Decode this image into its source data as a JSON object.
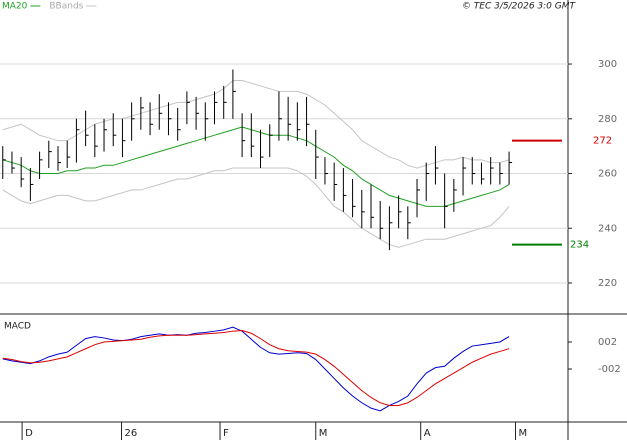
{
  "chart_data": [
    {
      "type": "ohlc",
      "source": "© TEC 3/5/2026 3:0 GMT",
      "xlim": [
        -0.3,
        61.4
      ],
      "ylim": [
        209.4,
        323.4
      ],
      "yticks": [
        220,
        240,
        260,
        280,
        300
      ],
      "grid": true,
      "bar_color": "#000000",
      "high": [
        270,
        268,
        266,
        262,
        268,
        272,
        270,
        272,
        280,
        283,
        278,
        280,
        282,
        280,
        286,
        288,
        286,
        289,
        286,
        284,
        290,
        288,
        286,
        290,
        292,
        298,
        282,
        282,
        276,
        278,
        290,
        288,
        286,
        288,
        276,
        266,
        264,
        262,
        258,
        254,
        256,
        250,
        248,
        252,
        248,
        258,
        264,
        270,
        260,
        258,
        266,
        266,
        264,
        266,
        264,
        268
      ],
      "low": [
        258,
        260,
        255,
        250,
        258,
        262,
        261,
        262,
        264,
        270,
        266,
        268,
        270,
        266,
        272,
        276,
        274,
        276,
        274,
        272,
        278,
        276,
        272,
        278,
        280,
        280,
        266,
        266,
        262,
        266,
        272,
        272,
        272,
        270,
        258,
        256,
        250,
        246,
        244,
        240,
        240,
        236,
        232,
        240,
        236,
        244,
        250,
        256,
        240,
        246,
        252,
        256,
        256,
        256,
        256,
        256
      ],
      "close": [
        265,
        262,
        258,
        256,
        265,
        268,
        264,
        266,
        276,
        274,
        270,
        276,
        274,
        272,
        280,
        284,
        278,
        282,
        280,
        276,
        286,
        282,
        280,
        286,
        286,
        290,
        272,
        270,
        266,
        274,
        280,
        278,
        276,
        278,
        266,
        260,
        256,
        252,
        248,
        246,
        244,
        240,
        242,
        246,
        242,
        254,
        260,
        262,
        248,
        254,
        262,
        260,
        258,
        262,
        260,
        264
      ],
      "series": [
        {
          "name": "MA20",
          "color": "#22a022",
          "values": [
            265,
            264,
            263,
            261,
            260,
            260,
            260,
            261,
            261,
            262,
            262,
            263,
            263,
            264,
            265,
            266,
            267,
            268,
            269,
            270,
            271,
            272,
            273,
            274,
            275,
            276,
            277,
            276,
            275,
            274,
            274,
            274,
            273,
            272,
            270,
            268,
            266,
            263,
            261,
            258,
            256,
            254,
            252,
            251,
            250,
            249,
            248,
            248,
            248,
            249,
            250,
            251,
            252,
            253,
            254,
            256
          ]
        },
        {
          "name": "BBands",
          "color": "#c4c4c4",
          "upper": [
            276,
            277,
            278,
            276,
            274,
            273,
            272,
            272,
            274,
            276,
            278,
            279,
            280,
            280,
            281,
            282,
            283,
            284,
            285,
            286,
            286,
            287,
            288,
            289,
            291,
            294,
            294,
            293,
            292,
            291,
            290,
            290,
            290,
            289,
            287,
            285,
            282,
            279,
            276,
            272,
            270,
            268,
            266,
            265,
            263,
            262,
            263,
            264,
            265,
            265,
            266,
            265,
            265,
            264,
            264,
            265
          ],
          "lower": [
            254,
            252,
            250,
            249,
            250,
            251,
            252,
            252,
            251,
            250,
            250,
            251,
            252,
            253,
            254,
            254,
            255,
            256,
            257,
            258,
            258,
            259,
            260,
            261,
            261,
            262,
            262,
            262,
            262,
            262,
            262,
            262,
            261,
            259,
            256,
            252,
            248,
            246,
            243,
            240,
            238,
            236,
            234,
            233,
            234,
            235,
            236,
            236,
            236,
            237,
            238,
            239,
            240,
            241,
            244,
            248
          ]
        }
      ],
      "levels": [
        {
          "value": 272,
          "color": "#d00000"
        },
        {
          "value": 234,
          "color": "#008000"
        }
      ]
    },
    {
      "type": "line",
      "title": "MACD",
      "xlim": [
        -0.3,
        61.4
      ],
      "ylim": [
        -9.85,
        5.85
      ],
      "yticks": [
        {
          "value": 2,
          "label": "002"
        },
        {
          "value": -2,
          "label": "-002"
        }
      ],
      "xticks": [
        {
          "value": 2.1,
          "label": "D"
        },
        {
          "value": 12.9,
          "label": "26"
        },
        {
          "value": 23.6,
          "label": "F"
        },
        {
          "value": 34.0,
          "label": "M"
        },
        {
          "value": 45.4,
          "label": "A"
        },
        {
          "value": 55.7,
          "label": "M"
        }
      ],
      "series": [
        {
          "color": "#0000cc",
          "values": [
            -0.5,
            -0.8,
            -1.0,
            -1.2,
            -0.8,
            -0.2,
            0.2,
            0.5,
            1.5,
            2.5,
            2.8,
            2.6,
            2.3,
            2.2,
            2.4,
            2.8,
            3.0,
            3.2,
            3.0,
            3.1,
            3.0,
            3.3,
            3.4,
            3.6,
            3.8,
            4.2,
            3.6,
            2.4,
            1.2,
            0.4,
            0.2,
            0.3,
            0.4,
            0.3,
            -0.6,
            -2.0,
            -3.4,
            -4.8,
            -6.0,
            -7.0,
            -7.8,
            -8.2,
            -7.4,
            -6.8,
            -6.0,
            -4.2,
            -2.6,
            -1.8,
            -1.6,
            -0.4,
            0.6,
            1.4,
            1.6,
            1.8,
            2.0,
            2.8
          ]
        },
        {
          "color": "#dd0000",
          "values": [
            -0.4,
            -0.6,
            -0.9,
            -1.1,
            -1.0,
            -0.8,
            -0.5,
            -0.2,
            0.4,
            1.0,
            1.6,
            2.0,
            2.1,
            2.2,
            2.3,
            2.4,
            2.7,
            2.9,
            3.0,
            3.0,
            3.0,
            3.1,
            3.2,
            3.3,
            3.4,
            3.6,
            3.7,
            3.3,
            2.5,
            1.6,
            1.0,
            0.7,
            0.6,
            0.5,
            0.2,
            -0.6,
            -1.6,
            -2.8,
            -4.0,
            -5.2,
            -6.2,
            -7.0,
            -7.4,
            -7.4,
            -7.0,
            -6.2,
            -5.2,
            -4.2,
            -3.4,
            -2.6,
            -1.8,
            -1.0,
            -0.4,
            0.2,
            0.6,
            1.0
          ]
        }
      ]
    }
  ]
}
